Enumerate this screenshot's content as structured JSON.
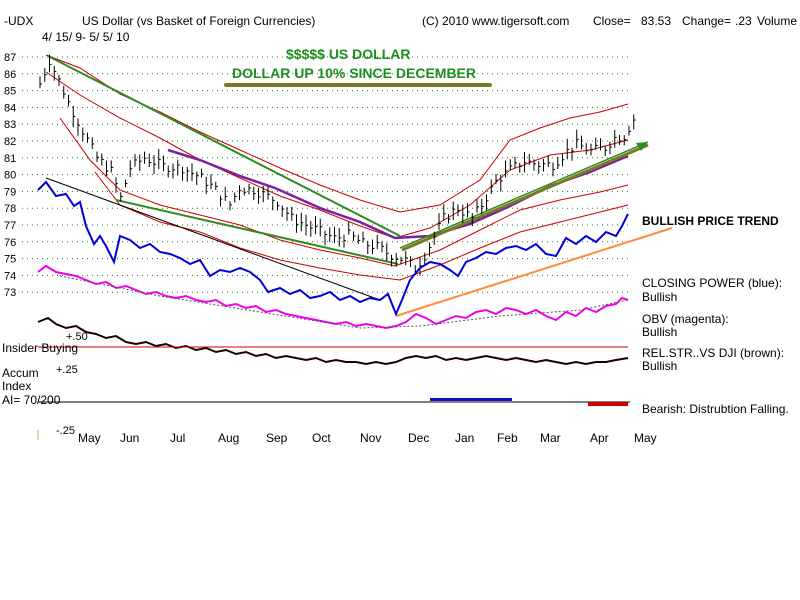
{
  "header": {
    "symbol": "-UDX",
    "title": "US Dollar (vs Basket of Foreign Currencies)",
    "copyright": "(C) 2010 www.tigersoft.com",
    "close_label": "Close=",
    "close_value": "83.53",
    "change_label": "Change=",
    "change_value": ".23",
    "volume_label": "Volume",
    "date_range": "4/ 15/ 9- 5/ 5/ 10"
  },
  "banner": {
    "line1": "$$$$$  US DOLLAR",
    "line2": "DOLLAR UP 10% SINCE DECEMBER"
  },
  "annotations": {
    "bullish_trend": "BULLISH PRICE TREND",
    "closing_power": "CLOSING POWER (blue):",
    "closing_power_status": "Bullish",
    "obv": "OBV (magenta):",
    "obv_status": "Bullish",
    "relstr": "REL.STR..VS DJI (brown):",
    "relstr_status": "Bullish",
    "bearish": "Bearish: Distrubtion Falling."
  },
  "indicator_labels": {
    "insider": "Insider Buying",
    "plus50": "+.50",
    "plus25": "+.25",
    "accum": "Accum",
    "index": "Index",
    "ai": "AI= 70/200",
    "minus25": "-.25"
  },
  "colors": {
    "price": "#000000",
    "bands": "#cc0000",
    "closing_power": "#0000dd",
    "obv": "#ee00ee",
    "relstr": "#330000",
    "trend_green": "#2e8b22",
    "ma_purple": "#7a1fa0",
    "trend_orange": "#ff8c3a",
    "trend_olive": "#7a7a20"
  },
  "chart_data": {
    "type": "line",
    "title": "US Dollar (vs Basket of Foreign Currencies)",
    "ylim": [
      72,
      87.5
    ],
    "yticks": [
      87,
      86,
      85,
      84,
      83,
      82,
      81,
      80,
      79,
      78,
      77,
      76,
      75,
      74,
      73
    ],
    "x_months": [
      "May",
      "Jun",
      "Jul",
      "Aug",
      "Sep",
      "Oct",
      "Nov",
      "Dec",
      "Jan",
      "Feb",
      "Mar",
      "Apr",
      "May"
    ],
    "series": [
      {
        "name": "UDX Close",
        "points": [
          [
            0,
            85.4
          ],
          [
            2,
            86.8
          ],
          [
            4,
            85.6
          ],
          [
            6,
            84.3
          ],
          [
            9,
            82.6
          ],
          [
            12,
            81.0
          ],
          [
            15,
            80.2
          ],
          [
            17,
            78.6
          ],
          [
            19,
            80.4
          ],
          [
            22,
            81.0
          ],
          [
            26,
            80.5
          ],
          [
            30,
            80.4
          ],
          [
            34,
            79.8
          ],
          [
            37,
            79.1
          ],
          [
            40,
            78.2
          ],
          [
            42,
            79.2
          ],
          [
            45,
            79.1
          ],
          [
            48,
            78.7
          ],
          [
            50,
            78.4
          ],
          [
            53,
            77.4
          ],
          [
            56,
            77.0
          ],
          [
            59,
            76.6
          ],
          [
            62,
            76.2
          ],
          [
            65,
            76.4
          ],
          [
            68,
            75.9
          ],
          [
            71,
            75.7
          ],
          [
            74,
            75.2
          ],
          [
            77,
            74.9
          ],
          [
            79,
            74.4
          ],
          [
            81,
            75.2
          ],
          [
            83,
            76.3
          ],
          [
            85,
            77.4
          ],
          [
            88,
            78.0
          ],
          [
            91,
            77.4
          ],
          [
            93,
            78.2
          ],
          [
            96,
            79.6
          ],
          [
            99,
            80.3
          ],
          [
            102,
            80.8
          ],
          [
            105,
            80.6
          ],
          [
            108,
            80.6
          ],
          [
            111,
            81.4
          ],
          [
            113,
            81.8
          ],
          [
            116,
            81.4
          ],
          [
            119,
            81.6
          ],
          [
            121,
            82.2
          ],
          [
            123,
            82.3
          ],
          [
            125,
            83.3
          ]
        ]
      }
    ],
    "indicators": [
      {
        "name": "CLOSING POWER (blue)",
        "status": "Bullish"
      },
      {
        "name": "OBV (magenta)",
        "status": "Bullish"
      },
      {
        "name": "REL.STR..VS DJI (brown)",
        "status": "Bullish"
      },
      {
        "name": "Accum Index",
        "value": "AI= 70/200"
      }
    ],
    "legend": "right"
  }
}
